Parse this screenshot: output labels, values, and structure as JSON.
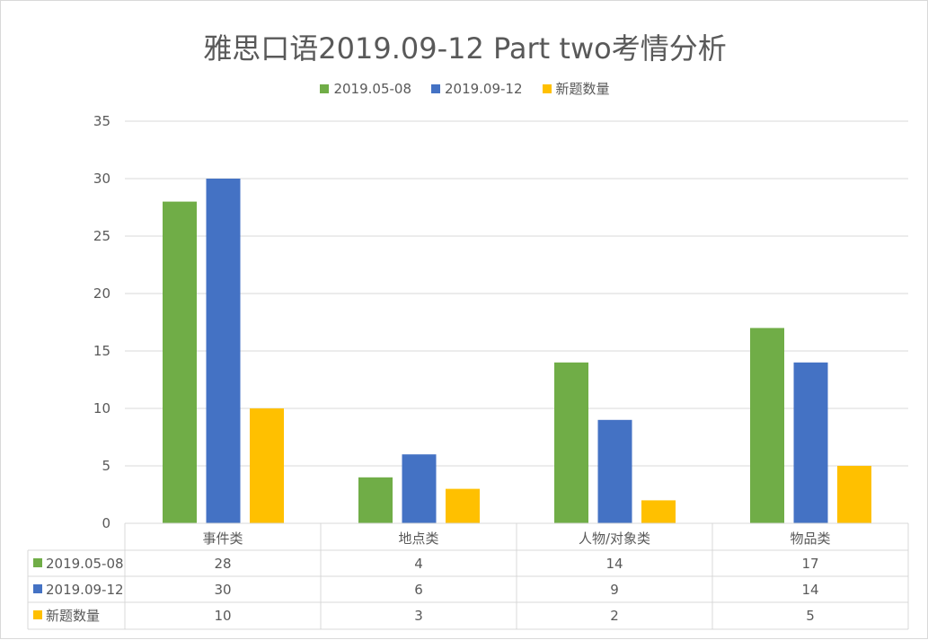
{
  "chart_data": {
    "type": "bar",
    "title": "雅思口语2019.09-12 Part two考情分析",
    "categories": [
      "事件类",
      "地点类",
      "人物/对象类",
      "物品类"
    ],
    "series": [
      {
        "name": "2019.05-08",
        "color": "#70AD47",
        "values": [
          28,
          4,
          14,
          17
        ]
      },
      {
        "name": "2019.09-12",
        "color": "#4472C4",
        "values": [
          30,
          6,
          9,
          14
        ]
      },
      {
        "name": "新题数量",
        "color": "#FFC000",
        "values": [
          10,
          3,
          2,
          5
        ]
      }
    ],
    "ylim": [
      0,
      35
    ],
    "yticks": [
      0,
      5,
      10,
      15,
      20,
      25,
      30,
      35
    ],
    "grid": true,
    "legend": "top",
    "data_table": true
  }
}
